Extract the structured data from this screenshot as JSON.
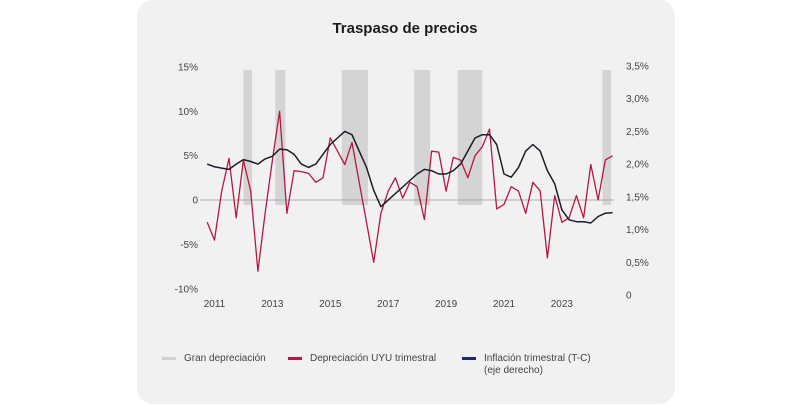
{
  "chart_data": {
    "type": "line",
    "title": "Traspaso de precios",
    "x_ticks": [
      "2011",
      "2013",
      "2015",
      "2017",
      "2019",
      "2021",
      "2023"
    ],
    "x_range": [
      2010.5,
      2024.8
    ],
    "left_axis": {
      "ticks": [
        "15%",
        "10%",
        "5%",
        "0",
        "-5%",
        "-10%"
      ],
      "tick_values": [
        15,
        10,
        5,
        0,
        -5,
        -10
      ],
      "ylim": [
        -10,
        15
      ]
    },
    "right_axis": {
      "ticks": [
        "3,5%",
        "3,0%",
        "2,5%",
        "2,0%",
        "1,5%",
        "1,0%",
        "0,5%",
        "0"
      ],
      "tick_values": [
        3.5,
        3.0,
        2.5,
        2.0,
        1.5,
        1.0,
        0.5,
        0
      ],
      "ylim": [
        0,
        3.5
      ]
    },
    "shaded_periods": [
      {
        "start": 2012.0,
        "end": 2012.3
      },
      {
        "start": 2013.1,
        "end": 2013.45
      },
      {
        "start": 2015.4,
        "end": 2016.3
      },
      {
        "start": 2017.9,
        "end": 2018.45
      },
      {
        "start": 2019.4,
        "end": 2020.25
      },
      {
        "start": 2024.4,
        "end": 2024.7
      }
    ],
    "series": [
      {
        "name": "Depreciación UYU trimestral",
        "axis": "left",
        "color": "#b8173f",
        "x": [
          2010.75,
          2011.0,
          2011.25,
          2011.5,
          2011.75,
          2012.0,
          2012.25,
          2012.5,
          2012.75,
          2013.0,
          2013.25,
          2013.5,
          2013.75,
          2014.0,
          2014.25,
          2014.5,
          2014.75,
          2015.0,
          2015.25,
          2015.5,
          2015.75,
          2016.0,
          2016.25,
          2016.5,
          2016.75,
          2017.0,
          2017.25,
          2017.5,
          2017.75,
          2018.0,
          2018.25,
          2018.5,
          2018.75,
          2019.0,
          2019.25,
          2019.5,
          2019.75,
          2020.0,
          2020.25,
          2020.5,
          2020.75,
          2021.0,
          2021.25,
          2021.5,
          2021.75,
          2022.0,
          2022.25,
          2022.5,
          2022.75,
          2023.0,
          2023.25,
          2023.5,
          2023.75,
          2024.0,
          2024.25,
          2024.5,
          2024.75
        ],
        "y": [
          -2.5,
          -4.5,
          1.0,
          4.7,
          -2.0,
          4.5,
          1.0,
          -8.0,
          -1.5,
          4.5,
          10.0,
          -1.5,
          3.3,
          3.2,
          3.0,
          2.0,
          2.5,
          7.0,
          5.5,
          4.0,
          6.5,
          2.0,
          -2.5,
          -7.0,
          -1.5,
          1.0,
          2.5,
          0.2,
          2.0,
          1.5,
          -2.2,
          5.5,
          5.4,
          1.0,
          4.8,
          4.5,
          2.5,
          5.0,
          6.0,
          8.0,
          -1.0,
          -0.5,
          1.5,
          1.0,
          -1.5,
          2.0,
          1.0,
          -6.5,
          0.5,
          -2.5,
          -2.0,
          0.5,
          -2.0,
          4.0,
          0.0,
          4.5,
          5.0
        ]
      },
      {
        "name": "Inflación trimestral (T-C)(eje derecho)",
        "axis": "right",
        "color": "#1c1c2a",
        "x": [
          2010.75,
          2011.0,
          2011.25,
          2011.5,
          2011.75,
          2012.0,
          2012.25,
          2012.5,
          2012.75,
          2013.0,
          2013.25,
          2013.5,
          2013.75,
          2014.0,
          2014.25,
          2014.5,
          2014.75,
          2015.0,
          2015.25,
          2015.5,
          2015.75,
          2016.0,
          2016.25,
          2016.5,
          2016.75,
          2017.0,
          2017.25,
          2017.5,
          2017.75,
          2018.0,
          2018.25,
          2018.5,
          2018.75,
          2019.0,
          2019.25,
          2019.5,
          2019.75,
          2020.0,
          2020.25,
          2020.5,
          2020.75,
          2021.0,
          2021.25,
          2021.5,
          2021.75,
          2022.0,
          2022.25,
          2022.5,
          2022.75,
          2023.0,
          2023.25,
          2023.5,
          2023.75,
          2024.0,
          2024.25,
          2024.5,
          2024.75
        ],
        "y": [
          2.0,
          1.96,
          1.94,
          1.92,
          2.0,
          2.07,
          2.04,
          2.0,
          2.08,
          2.12,
          2.23,
          2.22,
          2.15,
          2.0,
          1.95,
          2.0,
          2.15,
          2.3,
          2.4,
          2.5,
          2.45,
          2.2,
          1.95,
          1.6,
          1.35,
          1.45,
          1.55,
          1.65,
          1.75,
          1.85,
          1.92,
          1.9,
          1.85,
          1.85,
          1.9,
          2.0,
          2.2,
          2.4,
          2.45,
          2.45,
          2.3,
          1.85,
          1.8,
          1.95,
          2.2,
          2.3,
          2.2,
          1.9,
          1.7,
          1.3,
          1.15,
          1.12,
          1.12,
          1.1,
          1.2,
          1.25,
          1.26
        ]
      }
    ],
    "legend": [
      {
        "label": "Gran depreciación",
        "color": "#d0d0d0",
        "kind": "gran"
      },
      {
        "label": "Depreciación UYU trimestral",
        "color": "#b8173f",
        "kind": "dep"
      },
      {
        "label": "Inflación trimestral (T-C)(eje derecho)",
        "color": "#1f2a6b",
        "kind": "inf"
      }
    ],
    "legend_position": "bottom"
  }
}
